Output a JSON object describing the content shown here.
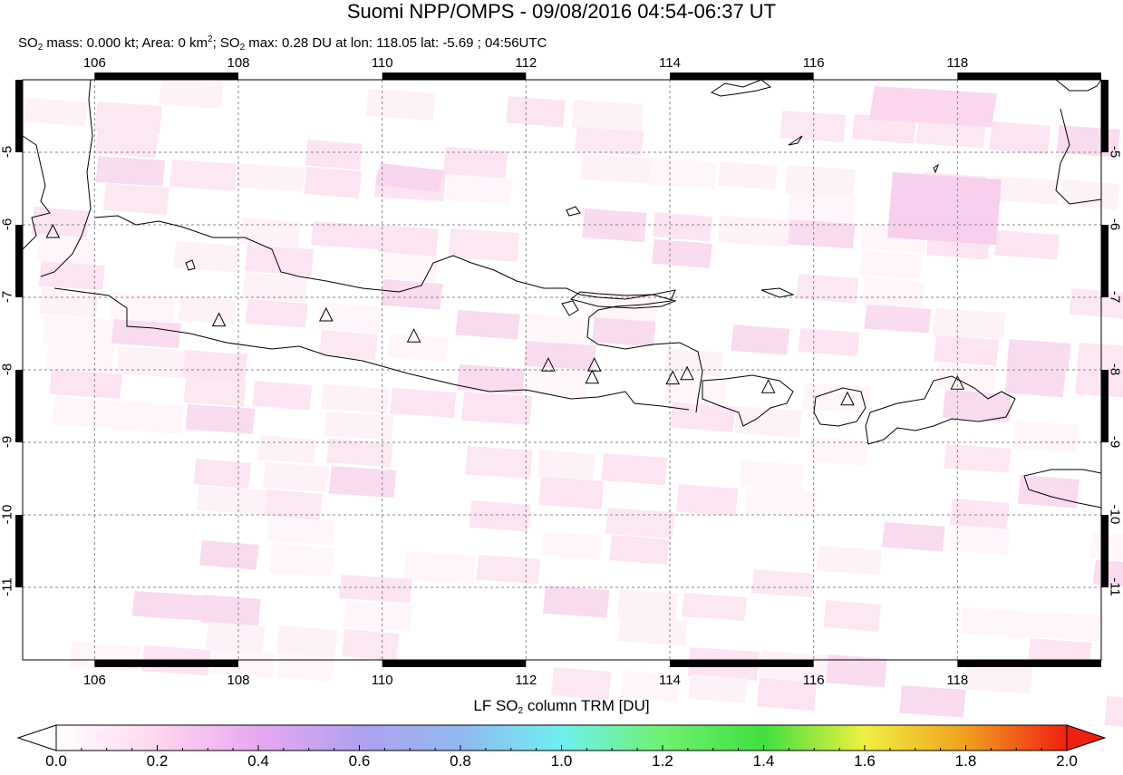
{
  "header": {
    "title": "Suomi NPP/OMPS - 09/08/2016 04:54-06:37 UT",
    "subtitle_parts": {
      "a": "SO",
      "a_sub": "2",
      "b": " mass: 0.000 kt; Area: 0 km",
      "b_sup": "2",
      "c": "; SO",
      "c_sub": "2",
      "d": " max: 0.28 DU at lon: 118.05 lat: -5.69 ; 04:56UTC"
    }
  },
  "map": {
    "lon_ticks": [
      "106",
      "108",
      "110",
      "112",
      "114",
      "116",
      "118"
    ],
    "lat_ticks": [
      "-5",
      "-6",
      "-7",
      "-8",
      "-9",
      "-10",
      "-11"
    ],
    "lon_range": [
      105.0,
      120.0
    ],
    "lat_range": [
      -4.0,
      -12.0
    ],
    "grid": true,
    "coastline_color": "#000000",
    "volcano_markers": [
      {
        "lon": 105.42,
        "lat": -6.1
      },
      {
        "lon": 107.73,
        "lat": -7.32
      },
      {
        "lon": 109.22,
        "lat": -7.25
      },
      {
        "lon": 110.44,
        "lat": -7.54
      },
      {
        "lon": 112.31,
        "lat": -7.94
      },
      {
        "lon": 112.95,
        "lat": -7.94
      },
      {
        "lon": 112.92,
        "lat": -8.11
      },
      {
        "lon": 114.04,
        "lat": -8.12
      },
      {
        "lon": 114.24,
        "lat": -8.06
      },
      {
        "lon": 115.37,
        "lat": -8.24
      },
      {
        "lon": 116.47,
        "lat": -8.41
      },
      {
        "lon": 118.0,
        "lat": -8.19
      }
    ]
  },
  "colorbar": {
    "label_prefix": "LF SO",
    "label_sub": "2",
    "label_suffix": " column TRM [DU]",
    "ticks": [
      "0.0",
      "0.2",
      "0.4",
      "0.6",
      "0.8",
      "1.0",
      "1.2",
      "1.4",
      "1.6",
      "1.8",
      "2.0"
    ],
    "range": [
      0.0,
      2.0
    ],
    "colors": [
      "#ffffff",
      "#ffd6f0",
      "#e8a8f0",
      "#b0a0f0",
      "#90b8f0",
      "#70f0f0",
      "#70f070",
      "#40e040",
      "#f0f040",
      "#f0a020",
      "#f02010"
    ]
  }
}
